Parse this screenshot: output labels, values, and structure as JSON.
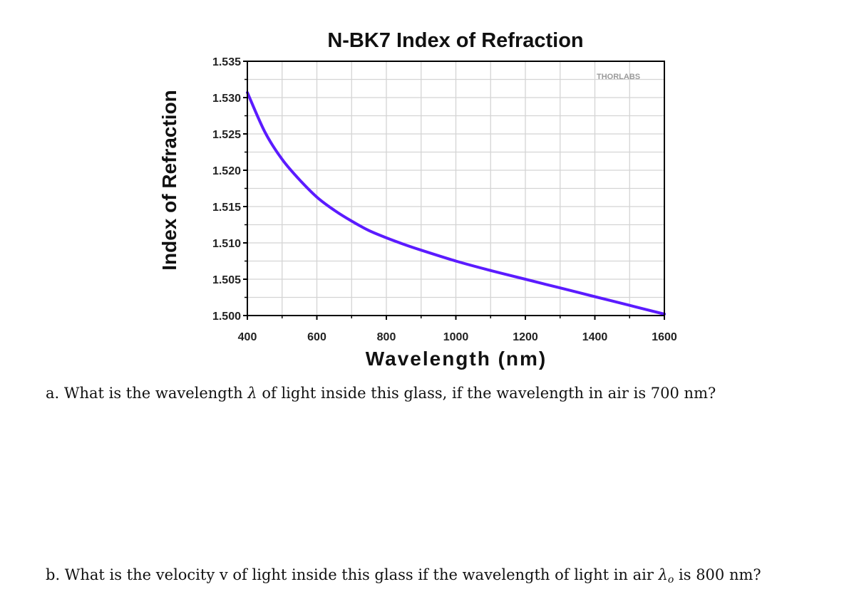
{
  "chart_data": {
    "type": "line",
    "title": "N-BK7 Index of Refraction",
    "xlabel": "Wavelength (nm)",
    "ylabel": "Index of Refraction",
    "xlim": [
      400,
      1600
    ],
    "ylim": [
      1.5,
      1.535
    ],
    "x_ticks": [
      "400",
      "600",
      "800",
      "1000",
      "1200",
      "1400",
      "1600"
    ],
    "y_ticks": [
      "1.500",
      "1.505",
      "1.510",
      "1.515",
      "1.520",
      "1.525",
      "1.530",
      "1.535"
    ],
    "grid": true,
    "watermark": "THORLABS",
    "series": [
      {
        "color": "#5b1bff",
        "x": [
          400,
          450,
          500,
          550,
          600,
          650,
          700,
          750,
          800,
          850,
          900,
          1000,
          1100,
          1200,
          1300,
          1400,
          1500,
          1600
        ],
        "y": [
          1.5307,
          1.5253,
          1.5215,
          1.5187,
          1.5163,
          1.5145,
          1.513,
          1.5117,
          1.5107,
          1.5098,
          1.509,
          1.5075,
          1.5062,
          1.505,
          1.5038,
          1.5026,
          1.5014,
          1.5002
        ]
      }
    ]
  },
  "questions": {
    "a": {
      "prefix": "a.  What is the wavelength ",
      "symbol": "λ",
      "suffix": " of light inside this glass, if the wavelength in air is 700 nm?"
    },
    "b": {
      "prefix": "b.  What is the velocity v of light inside this glass if the wavelength of light in air ",
      "symbol": "λ",
      "subscript": "o",
      "suffix": " is 800 nm?"
    }
  }
}
